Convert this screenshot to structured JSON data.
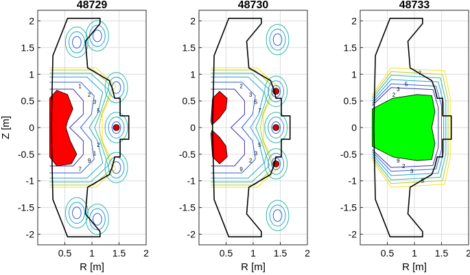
{
  "chart_data": [
    {
      "type": "contour",
      "title": "48729",
      "xlabel": "R [m]",
      "ylabel": "Z [m]",
      "xlim": [
        0,
        2
      ],
      "ylim": [
        -2.2,
        2.2
      ],
      "xticks": [
        0.5,
        1,
        1.5,
        2
      ],
      "yticks": [
        -2,
        -1.5,
        -1,
        -0.5,
        0,
        0.5,
        1,
        1.5,
        2
      ],
      "grid": true,
      "fill_color": "#ff0000",
      "fill_region": "double-lobe",
      "contour_labels": [
        "1",
        "2",
        "3",
        "5",
        "7",
        "9"
      ],
      "coil_markers": [
        "upper",
        "midplane",
        "lower"
      ]
    },
    {
      "type": "contour",
      "title": "48730",
      "xlabel": "R [m]",
      "ylabel": "",
      "xlim": [
        0,
        2
      ],
      "ylim": [
        -2.2,
        2.2
      ],
      "xticks": [
        0.5,
        1,
        1.5,
        2
      ],
      "yticks": [
        -2,
        -1.5,
        -1,
        -0.5,
        0,
        0.5,
        1,
        1.5,
        2
      ],
      "grid": true,
      "fill_color": "#ff0000",
      "fill_region": "two-lobes",
      "contour_labels": [
        "2",
        "3",
        "5",
        "7",
        "9"
      ],
      "coil_markers": [
        "upper",
        "midplane",
        "lower"
      ]
    },
    {
      "type": "contour",
      "title": "48733",
      "xlabel": "R [m]",
      "ylabel": "",
      "xlim": [
        0,
        2
      ],
      "ylim": [
        -2.2,
        2.2
      ],
      "xticks": [
        0.5,
        1,
        1.5,
        2
      ],
      "yticks": [
        -2,
        -1.5,
        -1,
        -0.5,
        0,
        0.5,
        1,
        1.5,
        2
      ],
      "grid": true,
      "fill_color": "#00ff00",
      "fill_region": "full",
      "contour_labels": [
        "2",
        "3",
        "5",
        "7",
        "9"
      ],
      "coil_markers": []
    }
  ],
  "colors": {
    "contours": [
      "#3c2ea8",
      "#2a5fd6",
      "#1a9fd8",
      "#2ab9a0",
      "#b8c830",
      "#f2e020"
    ],
    "vessel": "#000000"
  }
}
